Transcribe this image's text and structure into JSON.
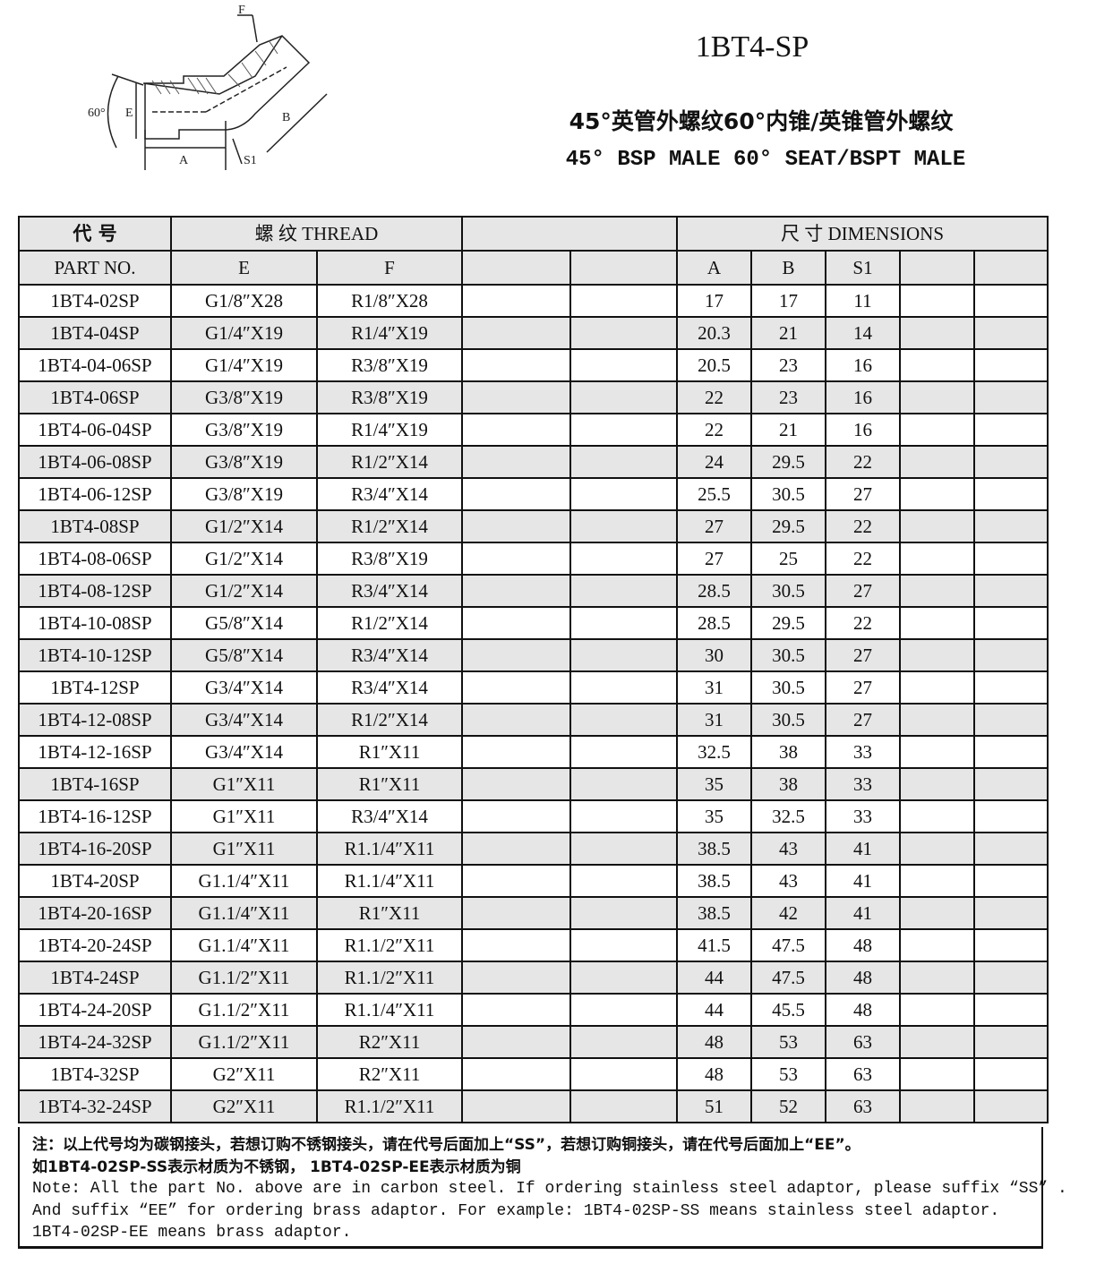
{
  "header": {
    "title": "1BT4-SP",
    "subtitle_cn": "45°英管外螺纹60°内锥/英锥管外螺纹",
    "subtitle_en": "45° BSP MALE 60° SEAT/BSPT MALE"
  },
  "drawing": {
    "labels": {
      "f": "F",
      "e": "E",
      "angle": "60°",
      "a": "A",
      "b": "B",
      "s1": "S1"
    }
  },
  "table": {
    "group_headers": {
      "part_cn": "代 号",
      "part_en": "PART NO.",
      "thread": "螺 纹 THREAD",
      "dimensions": "尺 寸 DIMENSIONS"
    },
    "columns": {
      "e": "E",
      "f": "F",
      "a": "A",
      "b": "B",
      "s1": "S1"
    },
    "rows": [
      [
        "1BT4-02SP",
        "G1/8″X28",
        "R1/8″X28",
        "17",
        "17",
        "11"
      ],
      [
        "1BT4-04SP",
        "G1/4″X19",
        "R1/4″X19",
        "20.3",
        "21",
        "14"
      ],
      [
        "1BT4-04-06SP",
        "G1/4″X19",
        "R3/8″X19",
        "20.5",
        "23",
        "16"
      ],
      [
        "1BT4-06SP",
        "G3/8″X19",
        "R3/8″X19",
        "22",
        "23",
        "16"
      ],
      [
        "1BT4-06-04SP",
        "G3/8″X19",
        "R1/4″X19",
        "22",
        "21",
        "16"
      ],
      [
        "1BT4-06-08SP",
        "G3/8″X19",
        "R1/2″X14",
        "24",
        "29.5",
        "22"
      ],
      [
        "1BT4-06-12SP",
        "G3/8″X19",
        "R3/4″X14",
        "25.5",
        "30.5",
        "27"
      ],
      [
        "1BT4-08SP",
        "G1/2″X14",
        "R1/2″X14",
        "27",
        "29.5",
        "22"
      ],
      [
        "1BT4-08-06SP",
        "G1/2″X14",
        "R3/8″X19",
        "27",
        "25",
        "22"
      ],
      [
        "1BT4-08-12SP",
        "G1/2″X14",
        "R3/4″X14",
        "28.5",
        "30.5",
        "27"
      ],
      [
        "1BT4-10-08SP",
        "G5/8″X14",
        "R1/2″X14",
        "28.5",
        "29.5",
        "22"
      ],
      [
        "1BT4-10-12SP",
        "G5/8″X14",
        "R3/4″X14",
        "30",
        "30.5",
        "27"
      ],
      [
        "1BT4-12SP",
        "G3/4″X14",
        "R3/4″X14",
        "31",
        "30.5",
        "27"
      ],
      [
        "1BT4-12-08SP",
        "G3/4″X14",
        "R1/2″X14",
        "31",
        "30.5",
        "27"
      ],
      [
        "1BT4-12-16SP",
        "G3/4″X14",
        "R1″X11",
        "32.5",
        "38",
        "33"
      ],
      [
        "1BT4-16SP",
        "G1″X11",
        "R1″X11",
        "35",
        "38",
        "33"
      ],
      [
        "1BT4-16-12SP",
        "G1″X11",
        "R3/4″X14",
        "35",
        "32.5",
        "33"
      ],
      [
        "1BT4-16-20SP",
        "G1″X11",
        "R1.1/4″X11",
        "38.5",
        "43",
        "41"
      ],
      [
        "1BT4-20SP",
        "G1.1/4″X11",
        "R1.1/4″X11",
        "38.5",
        "43",
        "41"
      ],
      [
        "1BT4-20-16SP",
        "G1.1/4″X11",
        "R1″X11",
        "38.5",
        "42",
        "41"
      ],
      [
        "1BT4-20-24SP",
        "G1.1/4″X11",
        "R1.1/2″X11",
        "41.5",
        "47.5",
        "48"
      ],
      [
        "1BT4-24SP",
        "G1.1/2″X11",
        "R1.1/2″X11",
        "44",
        "47.5",
        "48"
      ],
      [
        "1BT4-24-20SP",
        "G1.1/2″X11",
        "R1.1/4″X11",
        "44",
        "45.5",
        "48"
      ],
      [
        "1BT4-24-32SP",
        "G1.1/2″X11",
        "R2″X11",
        "48",
        "53",
        "63"
      ],
      [
        "1BT4-32SP",
        "G2″X11",
        "R2″X11",
        "48",
        "53",
        "63"
      ],
      [
        "1BT4-32-24SP",
        "G2″X11",
        "R1.1/2″X11",
        "51",
        "52",
        "63"
      ]
    ]
  },
  "note": {
    "lines": [
      "注：以上代号均为碳钢接头，若想订购不锈钢接头，请在代号后面加上“SS”，若想订购铜接头，请在代号后面加上“EE”。",
      "如1BT4-02SP-SS表示材质为不锈钢， 1BT4-02SP-EE表示材质为铜",
      "Note: All the part No. above are in carbon steel. If ordering stainless steel adaptor, please suffix “SS” .",
      "And suffix “EE” for ordering brass adaptor. For example: 1BT4-02SP-SS  means stainless steel adaptor.",
      "1BT4-02SP-EE means brass adaptor."
    ]
  }
}
